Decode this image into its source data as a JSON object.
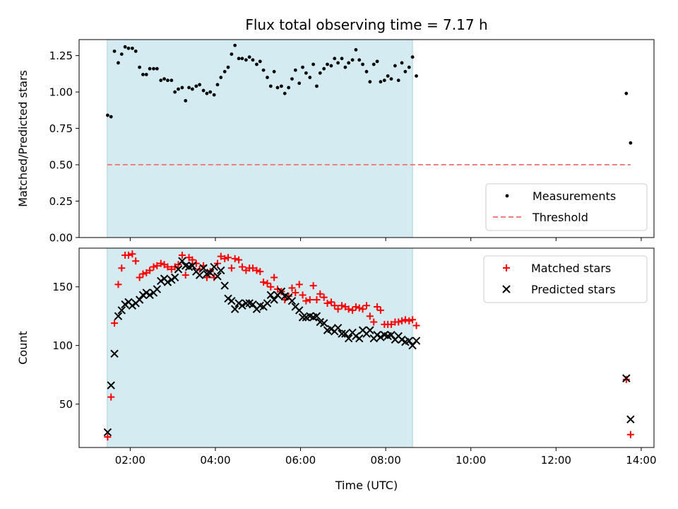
{
  "chart_data": {
    "type": "scatter",
    "title": "Flux total observing time = 7.17 h",
    "xlabel": "Time (UTC)",
    "x_unit": "hours",
    "xlim": [
      0.8,
      14.3
    ],
    "x_ticks": [
      {
        "value": 2,
        "label": "02:00"
      },
      {
        "value": 4,
        "label": "04:00"
      },
      {
        "value": 6,
        "label": "06:00"
      },
      {
        "value": 8,
        "label": "08:00"
      },
      {
        "value": 10,
        "label": "10:00"
      },
      {
        "value": 12,
        "label": "12:00"
      },
      {
        "value": 14,
        "label": "14:00"
      }
    ],
    "observing_window": [
      1.46,
      8.63
    ],
    "colors": {
      "window": "#d4ebf1",
      "window_edge": "#a8d3de",
      "measurements": "#000000",
      "threshold": "#f08080",
      "matched": "#ff0000",
      "predicted": "#000000"
    },
    "top": {
      "ylabel": "Matched/Predicted stars",
      "ylim": [
        0,
        1.36
      ],
      "y_ticks": [
        "0.00",
        "0.25",
        "0.50",
        "0.75",
        "1.00",
        "1.25"
      ],
      "threshold": 0.5,
      "threshold_x": [
        1.46,
        13.75
      ],
      "legend": [
        "Measurements",
        "Threshold"
      ],
      "legend_position": "lower-right",
      "measurements": [
        [
          1.47,
          0.84
        ],
        [
          1.55,
          0.83
        ],
        [
          1.63,
          1.28
        ],
        [
          1.72,
          1.2
        ],
        [
          1.8,
          1.26
        ],
        [
          1.88,
          1.31
        ],
        [
          1.96,
          1.3
        ],
        [
          2.05,
          1.3
        ],
        [
          2.13,
          1.28
        ],
        [
          2.22,
          1.17
        ],
        [
          2.3,
          1.12
        ],
        [
          2.38,
          1.12
        ],
        [
          2.46,
          1.16
        ],
        [
          2.55,
          1.16
        ],
        [
          2.63,
          1.16
        ],
        [
          2.72,
          1.08
        ],
        [
          2.8,
          1.09
        ],
        [
          2.88,
          1.08
        ],
        [
          2.97,
          1.08
        ],
        [
          3.05,
          1.0
        ],
        [
          3.13,
          1.02
        ],
        [
          3.22,
          1.03
        ],
        [
          3.3,
          0.94
        ],
        [
          3.38,
          1.03
        ],
        [
          3.46,
          1.02
        ],
        [
          3.55,
          1.04
        ],
        [
          3.63,
          1.05
        ],
        [
          3.72,
          1.01
        ],
        [
          3.8,
          0.99
        ],
        [
          3.88,
          1.0
        ],
        [
          3.97,
          0.98
        ],
        [
          4.05,
          1.05
        ],
        [
          4.13,
          1.1
        ],
        [
          4.22,
          1.14
        ],
        [
          4.3,
          1.17
        ],
        [
          4.38,
          1.26
        ],
        [
          4.46,
          1.32
        ],
        [
          4.55,
          1.23
        ],
        [
          4.63,
          1.23
        ],
        [
          4.72,
          1.22
        ],
        [
          4.8,
          1.24
        ],
        [
          4.88,
          1.22
        ],
        [
          4.97,
          1.19
        ],
        [
          5.05,
          1.21
        ],
        [
          5.13,
          1.15
        ],
        [
          5.22,
          1.1
        ],
        [
          5.3,
          1.04
        ],
        [
          5.38,
          1.14
        ],
        [
          5.46,
          1.03
        ],
        [
          5.55,
          1.04
        ],
        [
          5.63,
          0.99
        ],
        [
          5.72,
          1.03
        ],
        [
          5.8,
          1.09
        ],
        [
          5.88,
          1.15
        ],
        [
          5.97,
          1.06
        ],
        [
          6.05,
          1.17
        ],
        [
          6.13,
          1.13
        ],
        [
          6.22,
          1.1
        ],
        [
          6.3,
          1.19
        ],
        [
          6.38,
          1.04
        ],
        [
          6.46,
          1.13
        ],
        [
          6.55,
          1.16
        ],
        [
          6.63,
          1.19
        ],
        [
          6.72,
          1.18
        ],
        [
          6.8,
          1.23
        ],
        [
          6.88,
          1.2
        ],
        [
          6.97,
          1.23
        ],
        [
          7.05,
          1.17
        ],
        [
          7.13,
          1.2
        ],
        [
          7.22,
          1.22
        ],
        [
          7.3,
          1.29
        ],
        [
          7.38,
          1.22
        ],
        [
          7.46,
          1.19
        ],
        [
          7.55,
          1.14
        ],
        [
          7.63,
          1.07
        ],
        [
          7.72,
          1.19
        ],
        [
          7.8,
          1.21
        ],
        [
          7.88,
          1.07
        ],
        [
          7.97,
          1.08
        ],
        [
          8.05,
          1.11
        ],
        [
          8.13,
          1.09
        ],
        [
          8.22,
          1.18
        ],
        [
          8.3,
          1.08
        ],
        [
          8.38,
          1.2
        ],
        [
          8.46,
          1.14
        ],
        [
          8.55,
          1.17
        ],
        [
          8.63,
          1.24
        ],
        [
          8.72,
          1.11
        ],
        [
          13.65,
          0.99
        ],
        [
          13.75,
          0.65
        ]
      ]
    },
    "bottom": {
      "ylabel": "Count",
      "ylim": [
        13,
        183
      ],
      "y_ticks": [
        "50",
        "100",
        "150"
      ],
      "legend": [
        "Matched stars",
        "Predicted stars"
      ],
      "legend_position": "upper-right",
      "matched": [
        [
          1.47,
          22
        ],
        [
          1.55,
          56
        ],
        [
          1.63,
          119
        ],
        [
          1.72,
          152
        ],
        [
          1.8,
          166
        ],
        [
          1.88,
          177
        ],
        [
          1.96,
          177
        ],
        [
          2.05,
          178
        ],
        [
          2.13,
          172
        ],
        [
          2.22,
          158
        ],
        [
          2.3,
          161
        ],
        [
          2.38,
          162
        ],
        [
          2.46,
          164
        ],
        [
          2.55,
          167
        ],
        [
          2.63,
          168
        ],
        [
          2.72,
          170
        ],
        [
          2.8,
          169
        ],
        [
          2.88,
          167
        ],
        [
          2.97,
          165
        ],
        [
          3.05,
          167
        ],
        [
          3.13,
          169
        ],
        [
          3.22,
          177
        ],
        [
          3.3,
          160
        ],
        [
          3.38,
          175
        ],
        [
          3.46,
          173
        ],
        [
          3.55,
          170
        ],
        [
          3.63,
          165
        ],
        [
          3.72,
          168
        ],
        [
          3.8,
          158
        ],
        [
          3.88,
          163
        ],
        [
          3.97,
          158
        ],
        [
          4.05,
          170
        ],
        [
          4.13,
          176
        ],
        [
          4.22,
          174
        ],
        [
          4.3,
          175
        ],
        [
          4.38,
          166
        ],
        [
          4.46,
          174
        ],
        [
          4.55,
          173
        ],
        [
          4.63,
          167
        ],
        [
          4.72,
          164
        ],
        [
          4.8,
          166
        ],
        [
          4.88,
          166
        ],
        [
          4.97,
          164
        ],
        [
          5.05,
          163
        ],
        [
          5.13,
          154
        ],
        [
          5.22,
          153
        ],
        [
          5.3,
          150
        ],
        [
          5.38,
          158
        ],
        [
          5.46,
          148
        ],
        [
          5.55,
          146
        ],
        [
          5.63,
          139
        ],
        [
          5.72,
          142
        ],
        [
          5.8,
          149
        ],
        [
          5.88,
          145
        ],
        [
          5.97,
          152
        ],
        [
          6.05,
          143
        ],
        [
          6.13,
          138
        ],
        [
          6.22,
          139
        ],
        [
          6.3,
          151
        ],
        [
          6.38,
          139
        ],
        [
          6.46,
          144
        ],
        [
          6.55,
          141
        ],
        [
          6.63,
          136
        ],
        [
          6.72,
          137
        ],
        [
          6.8,
          134
        ],
        [
          6.88,
          131
        ],
        [
          6.97,
          134
        ],
        [
          7.05,
          133
        ],
        [
          7.13,
          131
        ],
        [
          7.22,
          130
        ],
        [
          7.3,
          133
        ],
        [
          7.38,
          132
        ],
        [
          7.46,
          131
        ],
        [
          7.55,
          134
        ],
        [
          7.63,
          125
        ],
        [
          7.72,
          120
        ],
        [
          7.8,
          133
        ],
        [
          7.88,
          130
        ],
        [
          7.97,
          118
        ],
        [
          8.05,
          118
        ],
        [
          8.13,
          118
        ],
        [
          8.22,
          120
        ],
        [
          8.3,
          120
        ],
        [
          8.38,
          121
        ],
        [
          8.46,
          122
        ],
        [
          8.55,
          121
        ],
        [
          8.63,
          122
        ],
        [
          8.72,
          117
        ],
        [
          13.65,
          71
        ],
        [
          13.75,
          24
        ]
      ],
      "predicted": [
        [
          1.47,
          26
        ],
        [
          1.55,
          66
        ],
        [
          1.63,
          93
        ],
        [
          1.72,
          125
        ],
        [
          1.8,
          130
        ],
        [
          1.88,
          135
        ],
        [
          1.96,
          137
        ],
        [
          2.05,
          134
        ],
        [
          2.13,
          136
        ],
        [
          2.22,
          139
        ],
        [
          2.3,
          143
        ],
        [
          2.38,
          145
        ],
        [
          2.46,
          143
        ],
        [
          2.55,
          145
        ],
        [
          2.63,
          148
        ],
        [
          2.72,
          155
        ],
        [
          2.8,
          157
        ],
        [
          2.88,
          154
        ],
        [
          2.97,
          156
        ],
        [
          3.05,
          158
        ],
        [
          3.13,
          165
        ],
        [
          3.22,
          172
        ],
        [
          3.3,
          168
        ],
        [
          3.38,
          167
        ],
        [
          3.46,
          168
        ],
        [
          3.55,
          163
        ],
        [
          3.63,
          160
        ],
        [
          3.72,
          166
        ],
        [
          3.8,
          161
        ],
        [
          3.88,
          162
        ],
        [
          3.97,
          167
        ],
        [
          4.05,
          159
        ],
        [
          4.13,
          164
        ],
        [
          4.22,
          151
        ],
        [
          4.3,
          140
        ],
        [
          4.38,
          138
        ],
        [
          4.46,
          131
        ],
        [
          4.55,
          136
        ],
        [
          4.63,
          134
        ],
        [
          4.72,
          136
        ],
        [
          4.8,
          136
        ],
        [
          4.88,
          135
        ],
        [
          4.97,
          131
        ],
        [
          5.05,
          134
        ],
        [
          5.13,
          133
        ],
        [
          5.22,
          136
        ],
        [
          5.3,
          143
        ],
        [
          5.38,
          139
        ],
        [
          5.46,
          143
        ],
        [
          5.55,
          146
        ],
        [
          5.63,
          142
        ],
        [
          5.72,
          141
        ],
        [
          5.8,
          138
        ],
        [
          5.88,
          133
        ],
        [
          5.97,
          130
        ],
        [
          6.05,
          124
        ],
        [
          6.13,
          124
        ],
        [
          6.22,
          125
        ],
        [
          6.3,
          124
        ],
        [
          6.38,
          125
        ],
        [
          6.46,
          120
        ],
        [
          6.55,
          119
        ],
        [
          6.63,
          113
        ],
        [
          6.72,
          114
        ],
        [
          6.8,
          112
        ],
        [
          6.88,
          115
        ],
        [
          6.97,
          110
        ],
        [
          7.05,
          110
        ],
        [
          7.13,
          106
        ],
        [
          7.22,
          111
        ],
        [
          7.3,
          108
        ],
        [
          7.38,
          106
        ],
        [
          7.46,
          113
        ],
        [
          7.55,
          110
        ],
        [
          7.63,
          113
        ],
        [
          7.72,
          106
        ],
        [
          7.8,
          109
        ],
        [
          7.88,
          107
        ],
        [
          7.97,
          109
        ],
        [
          8.05,
          108
        ],
        [
          8.13,
          109
        ],
        [
          8.22,
          105
        ],
        [
          8.3,
          108
        ],
        [
          8.38,
          105
        ],
        [
          8.46,
          103
        ],
        [
          8.55,
          104
        ],
        [
          8.63,
          100
        ],
        [
          8.72,
          104
        ],
        [
          13.65,
          72
        ],
        [
          13.75,
          37
        ]
      ]
    }
  }
}
